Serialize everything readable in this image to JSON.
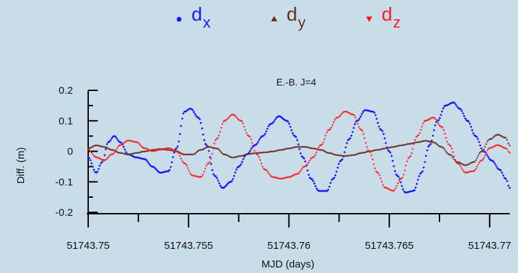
{
  "chart_data": {
    "type": "scatter",
    "title": "E.-B. J=4",
    "xlabel": "MJD (days)",
    "ylabel": "Diff. (m)",
    "xlim": [
      51743.75,
      51743.771
    ],
    "ylim": [
      -0.2,
      0.2
    ],
    "x_ticks": [
      51743.75,
      51743.755,
      51743.76,
      51743.765,
      51743.77
    ],
    "x_tick_labels": [
      "51743.75",
      "51743.755",
      "51743.76",
      "51743.765",
      "51743.77"
    ],
    "y_ticks": [
      0.2,
      0.1,
      0,
      -0.1,
      -0.2
    ],
    "y_tick_labels": [
      "0.2",
      "0.1",
      "0",
      "-0.1",
      "-0.2"
    ],
    "grid": false,
    "legend_position": "top",
    "series": [
      {
        "name": "dx",
        "label_main": "d",
        "label_sub": "x",
        "marker": "circle",
        "color": "#1a1aff",
        "x": [
          51743.75,
          51743.7504,
          51743.7507,
          51743.751,
          51743.7513,
          51743.7516,
          51743.752,
          51743.7524,
          51743.7528,
          51743.7532,
          51743.7536,
          51743.754,
          51743.7544,
          51743.7548,
          51743.7551,
          51743.7555,
          51743.7559,
          51743.7563,
          51743.7567,
          51743.7571,
          51743.7575,
          51743.7579,
          51743.7583,
          51743.7587,
          51743.7591,
          51743.7595,
          51743.7599,
          51743.7603,
          51743.7607,
          51743.7611,
          51743.7615,
          51743.7619,
          51743.7622,
          51743.7626,
          51743.763,
          51743.7634,
          51743.7638,
          51743.7642,
          51743.7646,
          51743.765,
          51743.7654,
          51743.7658,
          51743.7662,
          51743.7666,
          51743.767,
          51743.7674,
          51743.7678,
          51743.7682,
          51743.7685,
          51743.7689,
          51743.7693,
          51743.7697,
          51743.7701,
          51743.7705,
          51743.7708,
          51743.771
        ],
        "y": [
          -0.02,
          -0.07,
          -0.035,
          0.03,
          0.05,
          0.03,
          -0.01,
          -0.02,
          -0.025,
          -0.05,
          -0.07,
          -0.065,
          0.01,
          0.13,
          0.14,
          0.11,
          0.02,
          -0.08,
          -0.12,
          -0.1,
          -0.05,
          -0.01,
          0.02,
          0.05,
          0.09,
          0.115,
          0.1,
          0.05,
          -0.02,
          -0.09,
          -0.13,
          -0.13,
          -0.09,
          -0.03,
          0.04,
          0.1,
          0.135,
          0.13,
          0.07,
          0.0,
          -0.08,
          -0.135,
          -0.13,
          -0.07,
          0.02,
          0.1,
          0.15,
          0.16,
          0.14,
          0.1,
          0.05,
          0.0,
          -0.03,
          -0.06,
          -0.09,
          -0.12
        ]
      },
      {
        "name": "dy",
        "label_main": "d",
        "label_sub": "y",
        "marker": "triangle-up",
        "color": "#6b2f23",
        "x": [
          51743.75,
          51743.7504,
          51743.7508,
          51743.7512,
          51743.7516,
          51743.752,
          51743.7524,
          51743.7528,
          51743.7532,
          51743.7536,
          51743.754,
          51743.7544,
          51743.7548,
          51743.7552,
          51743.7556,
          51743.756,
          51743.7564,
          51743.7568,
          51743.7572,
          51743.7576,
          51743.758,
          51743.7584,
          51743.7588,
          51743.7592,
          51743.7596,
          51743.76,
          51743.7604,
          51743.7608,
          51743.7612,
          51743.7616,
          51743.762,
          51743.7624,
          51743.7628,
          51743.7632,
          51743.7636,
          51743.764,
          51743.7644,
          51743.7648,
          51743.7652,
          51743.7656,
          51743.766,
          51743.7664,
          51743.7668,
          51743.7672,
          51743.7676,
          51743.768,
          51743.7684,
          51743.7688,
          51743.7692,
          51743.7696,
          51743.77,
          51743.7704,
          51743.7708,
          51743.771
        ],
        "y": [
          0.01,
          0.02,
          0.015,
          0.005,
          -0.005,
          -0.01,
          -0.005,
          0.0,
          0.005,
          0.008,
          0.005,
          0.0,
          -0.01,
          -0.01,
          0.005,
          0.015,
          0.01,
          -0.01,
          -0.02,
          -0.015,
          -0.008,
          -0.005,
          -0.003,
          0.0,
          0.005,
          0.01,
          0.015,
          0.015,
          0.01,
          0.005,
          -0.005,
          -0.012,
          -0.015,
          -0.012,
          -0.005,
          0.0,
          0.005,
          0.01,
          0.015,
          0.02,
          0.025,
          0.03,
          0.035,
          0.03,
          0.015,
          -0.01,
          -0.035,
          -0.045,
          -0.035,
          0.0,
          0.04,
          0.055,
          0.045,
          0.02
        ]
      },
      {
        "name": "dz",
        "label_main": "d",
        "label_sub": "z",
        "marker": "triangle-down",
        "color": "#ff1a1a",
        "x": [
          51743.75,
          51743.7504,
          51743.7508,
          51743.7512,
          51743.7516,
          51743.752,
          51743.7524,
          51743.7528,
          51743.7532,
          51743.7536,
          51743.754,
          51743.7544,
          51743.7548,
          51743.7552,
          51743.7556,
          51743.756,
          51743.7564,
          51743.7568,
          51743.7572,
          51743.7576,
          51743.758,
          51743.7584,
          51743.7588,
          51743.7592,
          51743.7596,
          51743.76,
          51743.7604,
          51743.7608,
          51743.7612,
          51743.7616,
          51743.762,
          51743.7624,
          51743.7628,
          51743.7632,
          51743.7636,
          51743.764,
          51743.7644,
          51743.7648,
          51743.7652,
          51743.7656,
          51743.766,
          51743.7664,
          51743.7668,
          51743.7672,
          51743.7676,
          51743.768,
          51743.7684,
          51743.7688,
          51743.7692,
          51743.7696,
          51743.77,
          51743.7704,
          51743.7708,
          51743.771
        ],
        "y": [
          0.005,
          -0.02,
          -0.03,
          -0.01,
          0.02,
          0.035,
          0.03,
          0.01,
          0.0,
          0.005,
          0.01,
          0.0,
          -0.04,
          -0.08,
          -0.085,
          -0.04,
          0.04,
          0.1,
          0.12,
          0.1,
          0.05,
          -0.01,
          -0.06,
          -0.085,
          -0.09,
          -0.085,
          -0.075,
          -0.05,
          -0.02,
          0.02,
          0.07,
          0.11,
          0.13,
          0.12,
          0.07,
          0.0,
          -0.07,
          -0.12,
          -0.13,
          -0.09,
          -0.02,
          0.05,
          0.1,
          0.11,
          0.08,
          0.02,
          -0.04,
          -0.07,
          -0.065,
          -0.03,
          0.01,
          0.02,
          0.01,
          -0.005
        ]
      }
    ]
  }
}
